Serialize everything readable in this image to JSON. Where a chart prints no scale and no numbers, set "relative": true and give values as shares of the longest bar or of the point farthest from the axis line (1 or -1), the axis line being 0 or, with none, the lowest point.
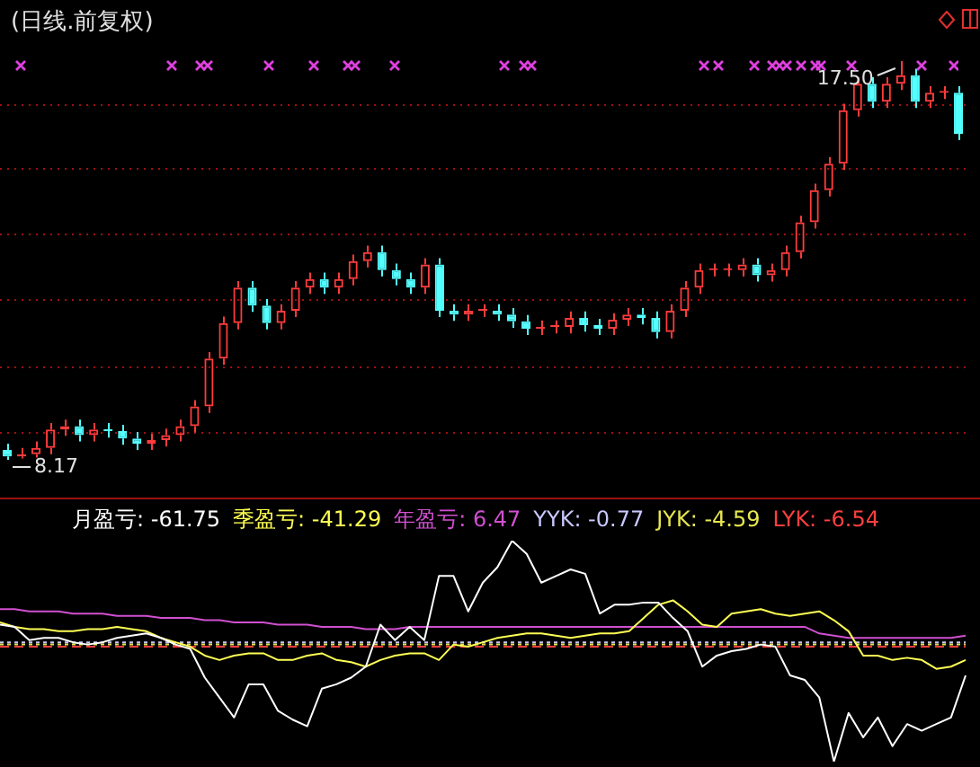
{
  "chart_data": [
    {
      "type": "candlestick",
      "title": "(日线.前复权)",
      "categories": [
        null,
        null,
        null,
        null,
        null,
        null,
        null,
        null,
        null,
        null,
        null,
        null,
        null,
        null,
        null,
        null,
        null,
        null,
        null,
        null,
        null,
        null,
        null,
        null,
        null,
        null,
        null,
        null,
        null,
        null,
        null,
        null,
        null,
        null,
        null,
        null,
        null,
        null,
        null,
        null,
        null,
        null,
        null,
        null,
        null,
        null,
        null,
        null,
        null,
        null,
        null,
        null,
        null,
        null,
        null,
        null,
        null,
        null,
        null,
        null,
        null,
        null,
        null,
        null,
        null,
        null,
        null
      ],
      "ohlc": [
        [
          8.4,
          8.55,
          8.17,
          8.25
        ],
        [
          8.25,
          8.45,
          8.2,
          8.3
        ],
        [
          8.3,
          8.6,
          8.22,
          8.45
        ],
        [
          8.45,
          9.03,
          8.3,
          8.88
        ],
        [
          8.88,
          9.11,
          8.73,
          8.96
        ],
        [
          8.96,
          9.11,
          8.6,
          8.75
        ],
        [
          8.75,
          9.03,
          8.6,
          8.88
        ],
        [
          8.88,
          9.03,
          8.69,
          8.84
        ],
        [
          8.84,
          8.99,
          8.52,
          8.67
        ],
        [
          8.67,
          8.82,
          8.4,
          8.55
        ],
        [
          8.55,
          8.78,
          8.4,
          8.63
        ],
        [
          8.63,
          8.9,
          8.48,
          8.75
        ],
        [
          8.75,
          9.11,
          8.6,
          8.96
        ],
        [
          8.96,
          9.57,
          8.81,
          9.42
        ],
        [
          9.42,
          10.69,
          9.27,
          10.54
        ],
        [
          10.54,
          11.52,
          10.39,
          11.37
        ],
        [
          11.37,
          12.35,
          11.22,
          12.2
        ],
        [
          12.2,
          12.35,
          11.63,
          11.78
        ],
        [
          11.78,
          11.93,
          11.22,
          11.37
        ],
        [
          11.37,
          11.81,
          11.22,
          11.66
        ],
        [
          11.66,
          12.35,
          11.51,
          12.2
        ],
        [
          12.2,
          12.55,
          12.05,
          12.4
        ],
        [
          12.4,
          12.55,
          12.05,
          12.2
        ],
        [
          12.2,
          12.55,
          12.05,
          12.4
        ],
        [
          12.4,
          12.97,
          12.25,
          12.82
        ],
        [
          12.82,
          13.18,
          12.67,
          13.03
        ],
        [
          13.03,
          13.18,
          12.46,
          12.61
        ],
        [
          12.61,
          12.76,
          12.25,
          12.4
        ],
        [
          12.4,
          12.55,
          12.05,
          12.2
        ],
        [
          12.2,
          12.89,
          12.05,
          12.74
        ],
        [
          12.74,
          12.89,
          11.51,
          11.66
        ],
        [
          11.66,
          11.81,
          11.42,
          11.57
        ],
        [
          11.57,
          11.81,
          11.42,
          11.66
        ],
        [
          11.66,
          11.81,
          11.51,
          11.66
        ],
        [
          11.66,
          11.81,
          11.42,
          11.57
        ],
        [
          11.57,
          11.72,
          11.26,
          11.41
        ],
        [
          11.41,
          11.56,
          11.09,
          11.24
        ],
        [
          11.24,
          11.43,
          11.09,
          11.28
        ],
        [
          11.28,
          11.43,
          11.13,
          11.28
        ],
        [
          11.28,
          11.64,
          11.13,
          11.49
        ],
        [
          11.49,
          11.64,
          11.17,
          11.32
        ],
        [
          11.32,
          11.47,
          11.09,
          11.24
        ],
        [
          11.24,
          11.6,
          11.09,
          11.45
        ],
        [
          11.45,
          11.72,
          11.3,
          11.57
        ],
        [
          11.57,
          11.72,
          11.34,
          11.49
        ],
        [
          11.49,
          11.64,
          11.01,
          11.16
        ],
        [
          11.16,
          11.81,
          11.01,
          11.66
        ],
        [
          11.66,
          12.35,
          11.51,
          12.2
        ],
        [
          12.2,
          12.76,
          12.05,
          12.61
        ],
        [
          12.61,
          12.76,
          12.46,
          12.61
        ],
        [
          12.61,
          12.76,
          12.46,
          12.61
        ],
        [
          12.61,
          12.89,
          12.46,
          12.74
        ],
        [
          12.74,
          12.89,
          12.34,
          12.49
        ],
        [
          12.49,
          12.76,
          12.34,
          12.61
        ],
        [
          12.61,
          13.18,
          12.46,
          13.03
        ],
        [
          13.03,
          13.88,
          12.88,
          13.73
        ],
        [
          13.73,
          14.63,
          13.58,
          14.48
        ],
        [
          14.48,
          15.25,
          14.33,
          15.1
        ],
        [
          15.1,
          16.5,
          14.95,
          16.35
        ],
        [
          16.35,
          17.12,
          16.2,
          16.97
        ],
        [
          16.97,
          17.12,
          16.4,
          16.55
        ],
        [
          16.55,
          17.12,
          16.4,
          16.97
        ],
        [
          16.97,
          17.5,
          16.82,
          17.17
        ],
        [
          17.17,
          17.32,
          16.4,
          16.55
        ],
        [
          16.55,
          16.91,
          16.4,
          16.76
        ],
        [
          16.76,
          16.91,
          16.61,
          16.76
        ],
        [
          16.76,
          16.91,
          15.65,
          15.8
        ]
      ],
      "colors": [
        "#54ffff",
        "#ff3c3c",
        "#ff3c3c",
        "#ff3c3c",
        "#ff3c3c",
        "#54ffff",
        "#ff3c3c",
        "#54ffff",
        "#54ffff",
        "#54ffff",
        "#ff3c3c",
        "#ff3c3c",
        "#ff3c3c",
        "#ff3c3c",
        "#ff3c3c",
        "#ff3c3c",
        "#ff3c3c",
        "#54ffff",
        "#54ffff",
        "#ff3c3c",
        "#ff3c3c",
        "#ff3c3c",
        "#54ffff",
        "#ff3c3c",
        "#ff3c3c",
        "#ff3c3c",
        "#54ffff",
        "#54ffff",
        "#54ffff",
        "#ff3c3c",
        "#54ffff",
        "#54ffff",
        "#ff3c3c",
        "#ff3c3c",
        "#54ffff",
        "#54ffff",
        "#54ffff",
        "#ff3c3c",
        "#ff3c3c",
        "#ff3c3c",
        "#54ffff",
        "#54ffff",
        "#ff3c3c",
        "#ff3c3c",
        "#54ffff",
        "#54ffff",
        "#ff3c3c",
        "#ff3c3c",
        "#ff3c3c",
        "#ff3c3c",
        "#ff3c3c",
        "#ff3c3c",
        "#54ffff",
        "#ff3c3c",
        "#ff3c3c",
        "#ff3c3c",
        "#ff3c3c",
        "#ff3c3c",
        "#ff3c3c",
        "#ff3c3c",
        "#54ffff",
        "#ff3c3c",
        "#ff3c3c",
        "#54ffff",
        "#ff3c3c",
        "#ff3c3c",
        "#54ffff"
      ],
      "yticks": [
        {
          "value": 8.79,
          "label": null
        },
        {
          "value": 10.33,
          "label": null
        },
        {
          "value": 11.9,
          "label": null
        },
        {
          "value": 13.44,
          "label": null
        },
        {
          "value": 14.97,
          "label": null
        },
        {
          "value": 16.46,
          "label": null
        }
      ],
      "grid": "y",
      "tick_labels": false,
      "annotations": [
        "8.17",
        "17.50"
      ]
    },
    {
      "type": "line",
      "relative": true,
      "tick_labels": false,
      "legend": "top left",
      "categories": [
        null,
        null,
        null,
        null,
        null,
        null,
        null,
        null,
        null,
        null,
        null,
        null,
        null,
        null,
        null,
        null,
        null,
        null,
        null,
        null,
        null,
        null,
        null,
        null,
        null,
        null,
        null,
        null,
        null,
        null,
        null,
        null,
        null,
        null,
        null,
        null,
        null,
        null,
        null,
        null,
        null,
        null,
        null,
        null,
        null,
        null,
        null,
        null,
        null,
        null,
        null,
        null,
        null,
        null,
        null,
        null,
        null,
        null,
        null,
        null,
        null,
        null,
        null,
        null,
        null,
        null,
        null
      ],
      "series": [
        {
          "name": "月盈亏: -61.75",
          "color": "#ffffff",
          "values": [
            0.62,
            0.61,
            0.55,
            0.56,
            0.56,
            0.54,
            0.53,
            0.54,
            0.56,
            0.57,
            0.58,
            0.56,
            0.53,
            0.51,
            0.38,
            0.29,
            0.2,
            0.35,
            0.35,
            0.23,
            0.19,
            0.16,
            0.33,
            0.35,
            0.38,
            0.43,
            0.62,
            0.55,
            0.61,
            0.55,
            0.84,
            0.84,
            0.68,
            0.81,
            0.88,
            1,
            0.94,
            0.81,
            0.84,
            0.87,
            0.85,
            0.67,
            0.71,
            0.71,
            0.72,
            0.72,
            0.65,
            0.59,
            0.43,
            0.48,
            0.5,
            0.51,
            0.53,
            0.52,
            0.39,
            0.37,
            0.29,
            0,
            0.22,
            0.11,
            0.2,
            0.07,
            0.17,
            0.14,
            0.17,
            0.2,
            0.39
          ]
        },
        {
          "name": "季盈亏: -41.29",
          "color": "#ffff54",
          "values": [
            0.63,
            0.61,
            0.6,
            0.6,
            0.59,
            0.59,
            0.6,
            0.6,
            0.61,
            0.6,
            0.59,
            0.56,
            0.54,
            0.52,
            0.48,
            0.46,
            0.48,
            0.49,
            0.49,
            0.46,
            0.46,
            0.48,
            0.49,
            0.46,
            0.45,
            0.43,
            0.46,
            0.48,
            0.49,
            0.49,
            0.46,
            0.53,
            0.52,
            0.54,
            0.56,
            0.57,
            0.58,
            0.58,
            0.57,
            0.56,
            0.57,
            0.58,
            0.58,
            0.59,
            0.65,
            0.71,
            0.73,
            0.68,
            0.62,
            0.61,
            0.67,
            0.68,
            0.69,
            0.67,
            0.66,
            0.67,
            0.68,
            0.64,
            0.59,
            0.48,
            0.48,
            0.46,
            0.47,
            0.46,
            0.42,
            0.43,
            0.46
          ]
        },
        {
          "name": "年盈亏: 6.47",
          "color": "#d050d0",
          "values": [
            0.69,
            0.69,
            0.68,
            0.68,
            0.68,
            0.67,
            0.67,
            0.67,
            0.66,
            0.66,
            0.66,
            0.65,
            0.65,
            0.65,
            0.64,
            0.64,
            0.63,
            0.63,
            0.63,
            0.62,
            0.62,
            0.62,
            0.61,
            0.61,
            0.61,
            0.6,
            0.6,
            0.6,
            0.61,
            0.61,
            0.61,
            0.61,
            0.61,
            0.61,
            0.61,
            0.61,
            0.61,
            0.61,
            0.61,
            0.61,
            0.61,
            0.61,
            0.61,
            0.61,
            0.61,
            0.61,
            0.61,
            0.61,
            0.61,
            0.61,
            0.61,
            0.61,
            0.61,
            0.61,
            0.61,
            0.61,
            0.58,
            0.57,
            0.56,
            0.56,
            0.56,
            0.56,
            0.56,
            0.56,
            0.56,
            0.56,
            0.57
          ]
        },
        {
          "name": "YYK: -0.77",
          "color": "#c8c8ff",
          "line_style": "dotted",
          "values": [
            0.54,
            0.54,
            0.54,
            0.54,
            0.54,
            0.54,
            0.54,
            0.54,
            0.54,
            0.54,
            0.54,
            0.54,
            0.54,
            0.54,
            0.54,
            0.54,
            0.54,
            0.54,
            0.54,
            0.54,
            0.54,
            0.54,
            0.54,
            0.54,
            0.54,
            0.54,
            0.54,
            0.54,
            0.54,
            0.54,
            0.54,
            0.54,
            0.54,
            0.54,
            0.54,
            0.54,
            0.54,
            0.54,
            0.54,
            0.54,
            0.54,
            0.54,
            0.54,
            0.54,
            0.54,
            0.54,
            0.54,
            0.54,
            0.54,
            0.54,
            0.54,
            0.54,
            0.54,
            0.54,
            0.54,
            0.54,
            0.54,
            0.54,
            0.54,
            0.54,
            0.54,
            0.54,
            0.54,
            0.54,
            0.54,
            0.54,
            0.54
          ]
        },
        {
          "name": "JYK: -4.59",
          "color": "#e6e650",
          "line_style": "dotted",
          "values": [
            0.53,
            0.53,
            0.53,
            0.53,
            0.53,
            0.53,
            0.53,
            0.53,
            0.53,
            0.53,
            0.53,
            0.53,
            0.53,
            0.53,
            0.53,
            0.53,
            0.53,
            0.53,
            0.53,
            0.53,
            0.53,
            0.53,
            0.53,
            0.53,
            0.53,
            0.53,
            0.53,
            0.53,
            0.53,
            0.53,
            0.53,
            0.53,
            0.53,
            0.53,
            0.53,
            0.53,
            0.53,
            0.53,
            0.53,
            0.53,
            0.53,
            0.53,
            0.53,
            0.53,
            0.53,
            0.53,
            0.53,
            0.53,
            0.53,
            0.53,
            0.53,
            0.53,
            0.53,
            0.53,
            0.53,
            0.53,
            0.53,
            0.53,
            0.53,
            0.53,
            0.53,
            0.53,
            0.53,
            0.53,
            0.53,
            0.53,
            0.53
          ]
        },
        {
          "name": "LYK: -6.54",
          "color": "#ff4040",
          "line_style": "dashed",
          "values": [
            0.52,
            0.52,
            0.52,
            0.52,
            0.52,
            0.52,
            0.52,
            0.52,
            0.52,
            0.52,
            0.52,
            0.52,
            0.52,
            0.52,
            0.52,
            0.52,
            0.52,
            0.52,
            0.52,
            0.52,
            0.52,
            0.52,
            0.52,
            0.52,
            0.52,
            0.52,
            0.52,
            0.52,
            0.52,
            0.52,
            0.52,
            0.52,
            0.52,
            0.52,
            0.52,
            0.52,
            0.52,
            0.52,
            0.52,
            0.52,
            0.52,
            0.52,
            0.52,
            0.52,
            0.52,
            0.52,
            0.52,
            0.52,
            0.52,
            0.52,
            0.52,
            0.52,
            0.52,
            0.52,
            0.52,
            0.52,
            0.52,
            0.52,
            0.52,
            0.52,
            0.52,
            0.52,
            0.52,
            0.52,
            0.52,
            0.52,
            0.52
          ]
        }
      ]
    }
  ]
}
